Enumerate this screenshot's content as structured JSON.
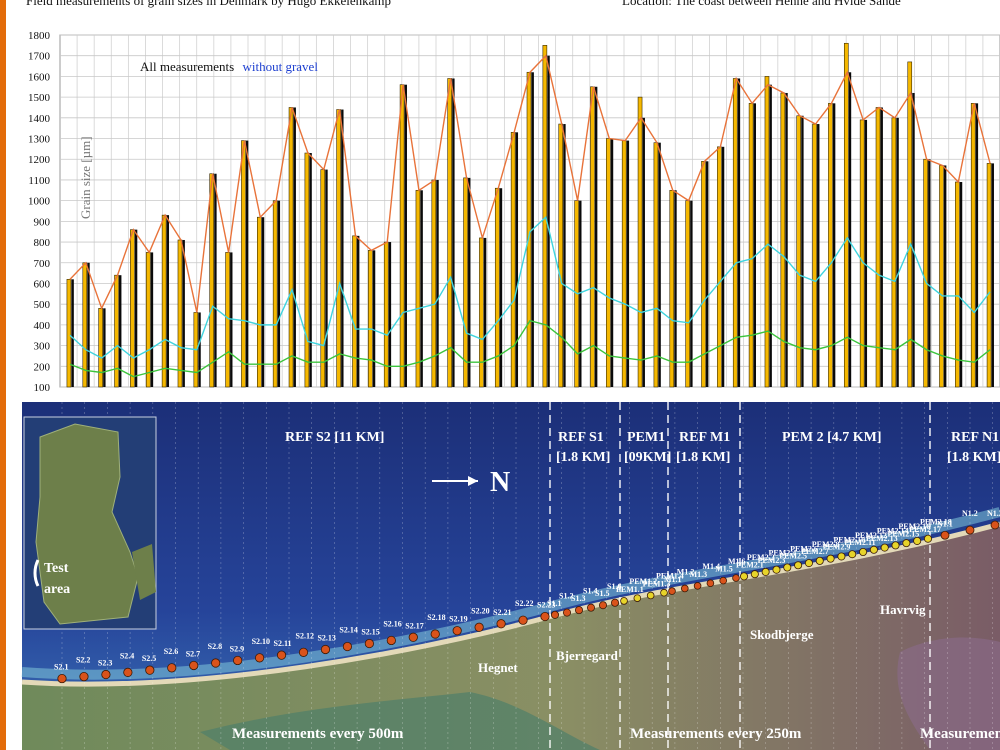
{
  "header": {
    "left_title": "Field measurements of grain sizes in Denmark by  Hugo Ekkelenkamp",
    "right_title": "Location: The coast between Henne and Hvide Sande"
  },
  "colors": {
    "bar_all": "#f5b800",
    "bar_without_gravel": "#0a0a0a",
    "line_all": "#e8733a",
    "line_cyan": "#3fd4de",
    "line_green": "#3cc43c",
    "sea": "#1d3680",
    "left_bar": "#e36c0a"
  },
  "chart_data": {
    "type": "bar",
    "ylabel": "Grain size  [µm]",
    "ylim": [
      100,
      1800
    ],
    "yticks": [
      100,
      200,
      300,
      400,
      500,
      600,
      700,
      800,
      900,
      1000,
      1100,
      1200,
      1300,
      1400,
      1500,
      1600,
      1700,
      1800
    ],
    "grid": true,
    "legend": {
      "all_label": "All measurements",
      "without_label": "without gravel",
      "position": "top-left"
    },
    "bars": [
      620,
      700,
      480,
      640,
      860,
      750,
      930,
      810,
      460,
      1130,
      750,
      1290,
      920,
      1000,
      1450,
      1230,
      1150,
      1440,
      830,
      760,
      800,
      1560,
      1050,
      1100,
      1590,
      1110,
      820,
      1060,
      1330,
      1620,
      1750,
      1370,
      1000,
      1550,
      1300,
      1290,
      1500,
      1280,
      1050,
      1000,
      1190,
      1260,
      1590,
      1470,
      1600,
      1520,
      1410,
      1370,
      1470,
      1760,
      1390,
      1450,
      1400,
      1670,
      1200,
      1170,
      1090,
      1470,
      1180
    ],
    "series": [
      {
        "values": [
          620,
          700,
          480,
          640,
          860,
          750,
          930,
          810,
          460,
          1130,
          750,
          1290,
          920,
          1000,
          1450,
          1230,
          1150,
          1440,
          830,
          760,
          800,
          1560,
          1050,
          1100,
          1590,
          1110,
          820,
          1060,
          1330,
          1620,
          1700,
          1370,
          1000,
          1550,
          1300,
          1290,
          1400,
          1280,
          1050,
          1000,
          1190,
          1260,
          1590,
          1470,
          1560,
          1520,
          1410,
          1370,
          1470,
          1620,
          1390,
          1450,
          1400,
          1520,
          1200,
          1170,
          1090,
          1470,
          1180
        ]
      },
      {
        "values": [
          350,
          280,
          240,
          300,
          240,
          280,
          330,
          290,
          280,
          490,
          430,
          420,
          400,
          400,
          570,
          320,
          300,
          600,
          380,
          380,
          350,
          460,
          480,
          500,
          630,
          360,
          330,
          420,
          520,
          850,
          920,
          600,
          550,
          580,
          530,
          500,
          460,
          480,
          420,
          410,
          520,
          610,
          700,
          720,
          790,
          730,
          640,
          610,
          700,
          820,
          700,
          640,
          610,
          790,
          600,
          540,
          540,
          460,
          560
        ]
      },
      {
        "values": [
          210,
          180,
          170,
          190,
          150,
          170,
          190,
          180,
          170,
          220,
          270,
          210,
          210,
          210,
          250,
          220,
          220,
          260,
          240,
          230,
          200,
          200,
          220,
          250,
          290,
          220,
          220,
          250,
          300,
          420,
          400,
          340,
          260,
          300,
          250,
          240,
          230,
          250,
          220,
          220,
          260,
          300,
          340,
          350,
          370,
          320,
          290,
          280,
          300,
          340,
          300,
          290,
          280,
          330,
          280,
          250,
          230,
          220,
          280
        ]
      }
    ]
  },
  "map": {
    "sections": [
      {
        "line1": "REF S2  [11 KM]",
        "line2": ""
      },
      {
        "line1": "REF S1",
        "line2": "[1.8 KM]"
      },
      {
        "line1": "PEM1",
        "line2": "[09KM]"
      },
      {
        "line1": "REF M1",
        "line2": "[1.8 KM]"
      },
      {
        "line1": "PEM 2  [4.7 KM]",
        "line2": ""
      },
      {
        "line1": "REF N1",
        "line2": "[1.8 KM]"
      }
    ],
    "north_label": "N",
    "inset_label_line1": "Test",
    "inset_label_line2": "area",
    "places": [
      "Hegnet",
      "Bjerregard",
      "Skodbjerge",
      "Havrvig"
    ],
    "bottom_left": "Measurements  every 500m",
    "bottom_mid": "Measurements   every 250m",
    "bottom_right": "Measurement",
    "s2_labels": [
      "S2.1",
      "S2.2",
      "S2.3",
      "S2.4",
      "S2.5",
      "S2.6",
      "S2.7",
      "S2.8",
      "S2.9",
      "S2.10",
      "S2.11",
      "S2.12",
      "S2.13",
      "S2.14",
      "S2.15",
      "S2.16",
      "S2.17",
      "S2.18",
      "S2.19",
      "S2.20",
      "S2.21",
      "S2.22",
      "S2.23"
    ],
    "s1_labels": [
      "S1.1",
      "S1.2",
      "S1.3",
      "S1.4",
      "S1.5",
      "S1.6"
    ],
    "pem1_labels": [
      "PEM1.1",
      "PEM1.2",
      "PEM1.3",
      "PEM1.4"
    ],
    "m_labels": [
      "M1.1",
      "M1.2",
      "M1.3",
      "M1.4",
      "M1.5",
      "M1.6"
    ],
    "pem2_labels": [
      "PEM2.1",
      "PEM2.2",
      "PEM2.3",
      "PEM2.4",
      "PEM2.5",
      "PEM2.6",
      "PEM2.7",
      "PEM2.8",
      "PEM2.9",
      "PEM2.10",
      "PEM2.11",
      "PEM2.12",
      "PEM2.13",
      "PEM2.14",
      "PEM2.15",
      "PEM2.16",
      "PEM2.17",
      "PEM2.18"
    ],
    "n_labels": [
      "N1.1",
      "N1.2",
      "N1.3"
    ]
  }
}
